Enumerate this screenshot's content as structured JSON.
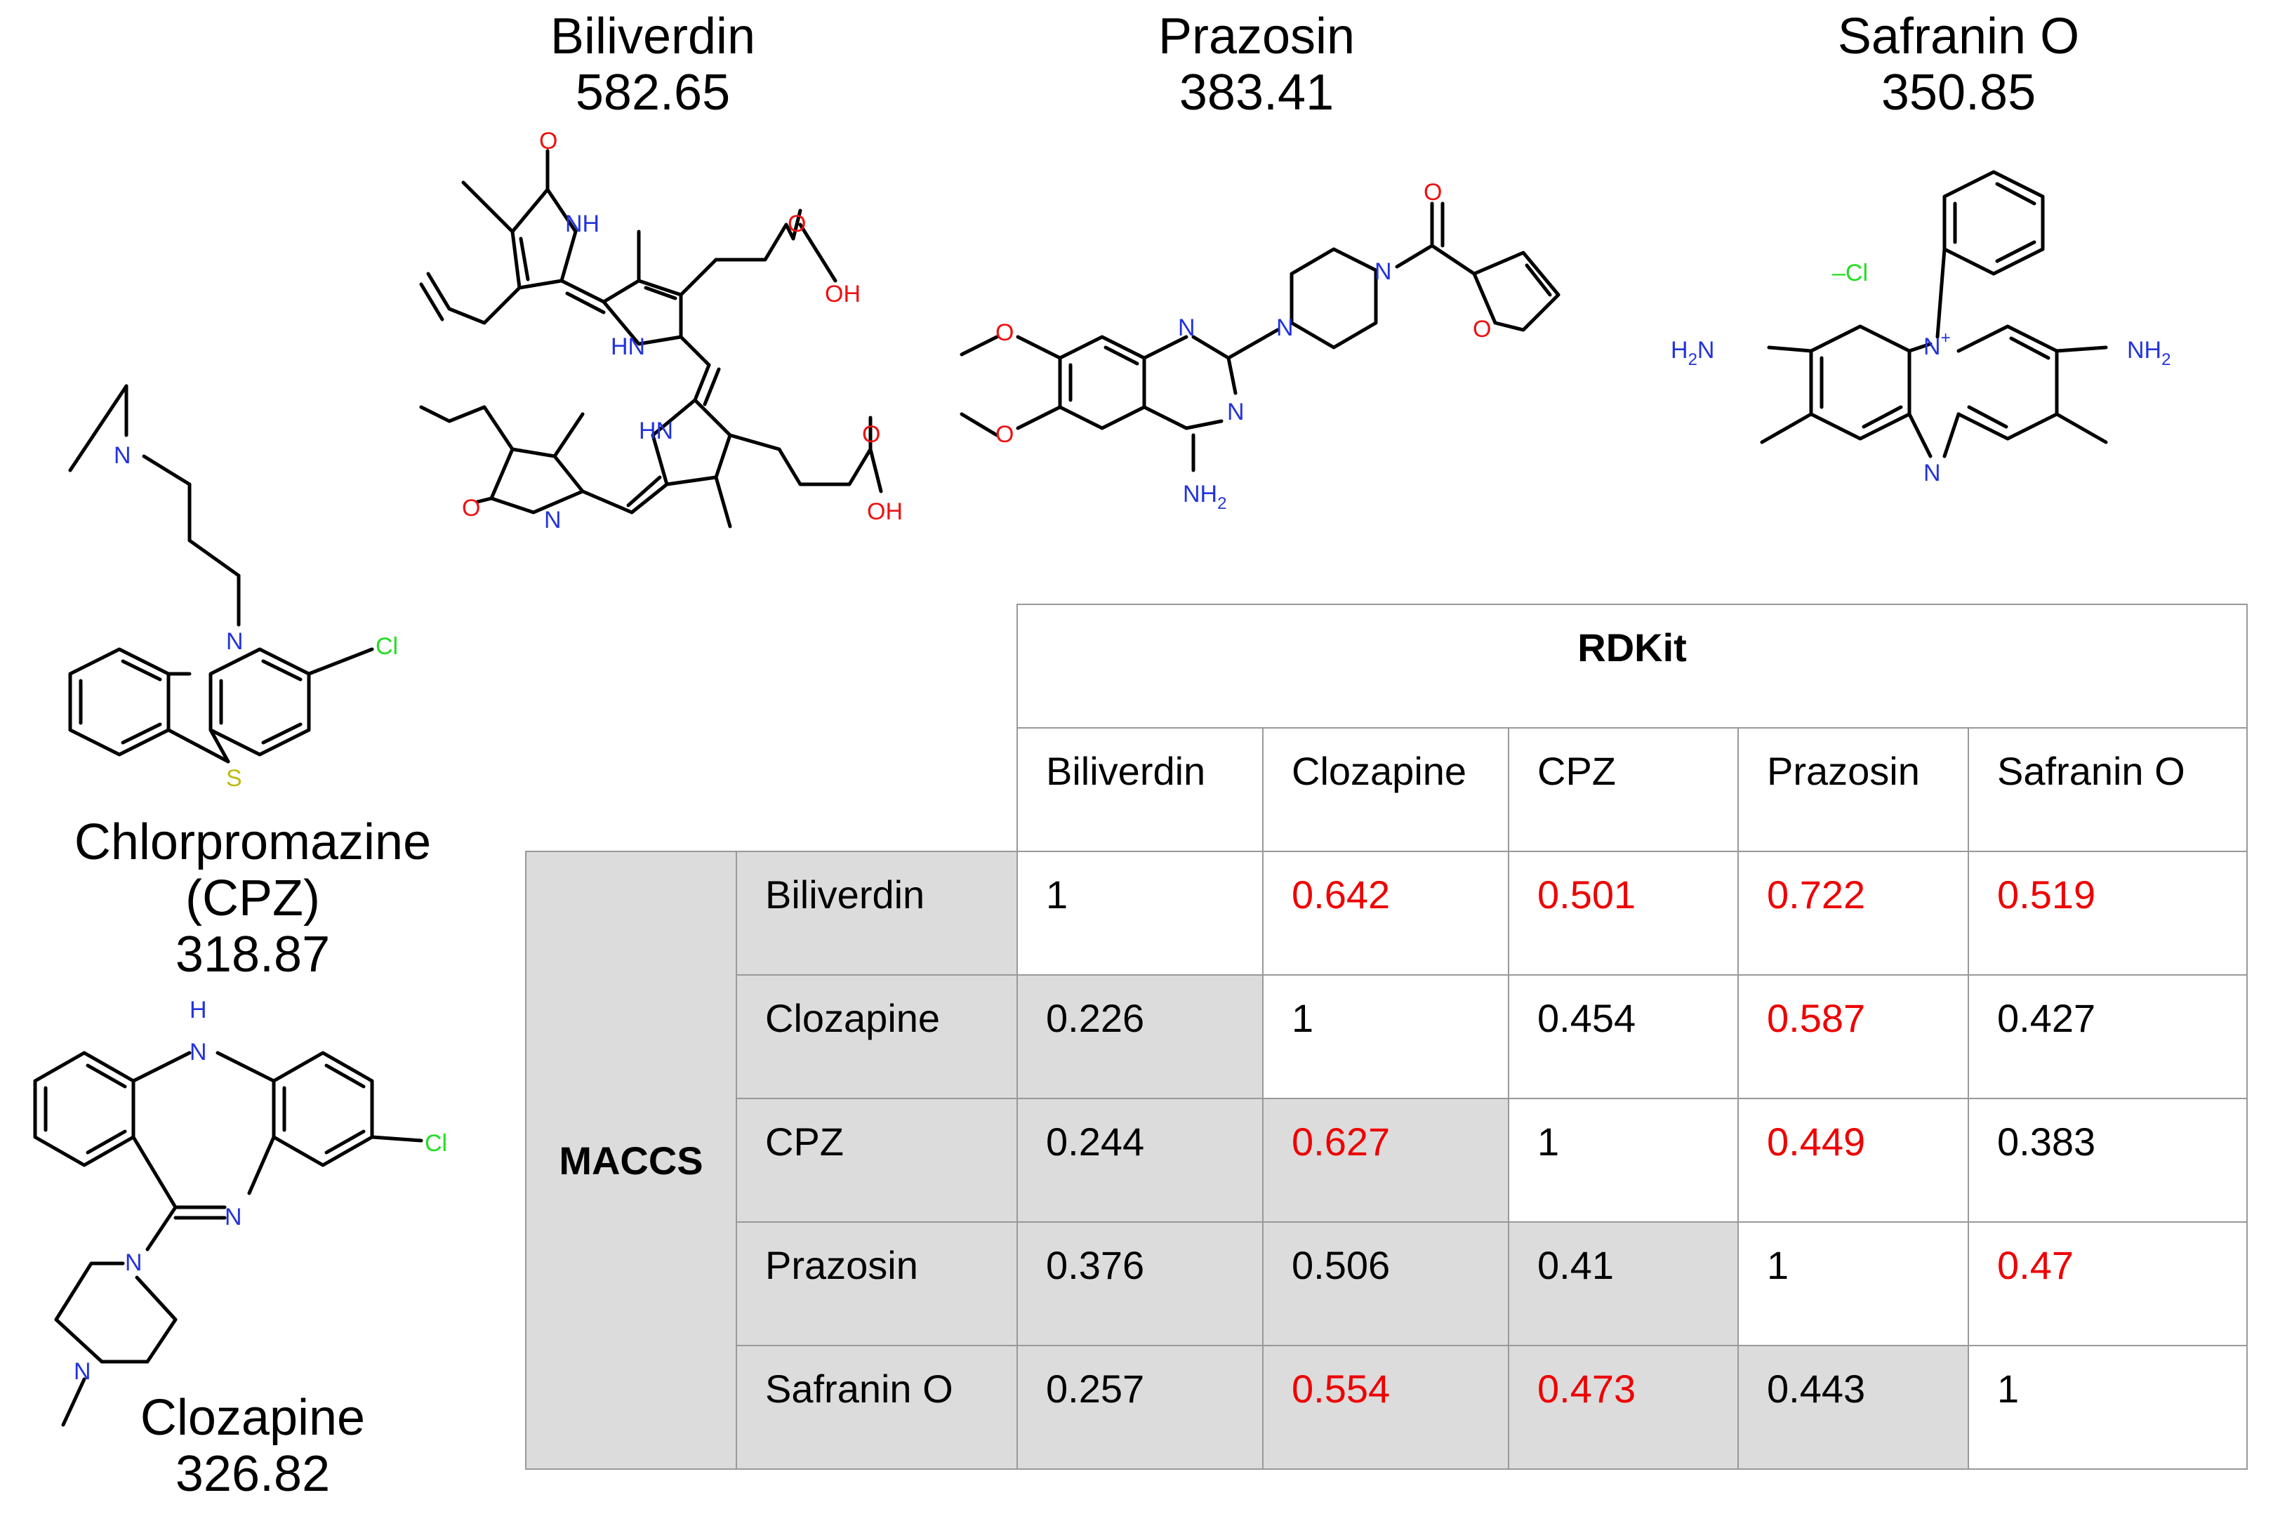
{
  "molecules": {
    "biliverdin": {
      "name": "Biliverdin",
      "mw": "582.65"
    },
    "prazosin": {
      "name": "Prazosin",
      "mw": "383.41"
    },
    "safranin": {
      "name": "Safranin O",
      "mw": "350.85"
    },
    "cpz": {
      "name": "Chlorpromazine",
      "abbrev": "(CPZ)",
      "mw": "318.87"
    },
    "clozapine": {
      "name": "Clozapine",
      "mw": "326.82"
    }
  },
  "atoms": {
    "N": "N",
    "NH": "NH",
    "HN": "HN",
    "H": "H",
    "O": "O",
    "OH": "OH",
    "Cl": "Cl",
    "S": "S",
    "NH2": "NH",
    "sub2": "2",
    "H2N": "H",
    "N_plus": "+",
    "chloride": "–Cl"
  },
  "colors": {
    "nitrogen": "#2233dd",
    "oxygen": "#ee1111",
    "chlorine": "#22dd22",
    "sulfur": "#bbbb11",
    "highlight": "#ee0000",
    "shade": "#dcdcdc"
  },
  "table": {
    "col_group": "RDKit",
    "row_group": "MACCS",
    "columns": [
      "Biliverdin",
      "Clozapine",
      "CPZ",
      "Prazosin",
      "Safranin O"
    ],
    "rows": [
      {
        "label": "Biliverdin",
        "cells": [
          "1",
          "0.642",
          "0.501",
          "0.722",
          "0.519"
        ]
      },
      {
        "label": "Clozapine",
        "cells": [
          "0.226",
          "1",
          "0.454",
          "0.587",
          "0.427"
        ]
      },
      {
        "label": "CPZ",
        "cells": [
          "0.244",
          "0.627",
          "1",
          "0.449",
          "0.383"
        ]
      },
      {
        "label": "Prazosin",
        "cells": [
          "0.376",
          "0.506",
          "0.41",
          "1",
          "0.47"
        ]
      },
      {
        "label": "Safranin O",
        "cells": [
          "0.257",
          "0.554",
          "0.473",
          "0.443",
          "1"
        ]
      }
    ]
  }
}
